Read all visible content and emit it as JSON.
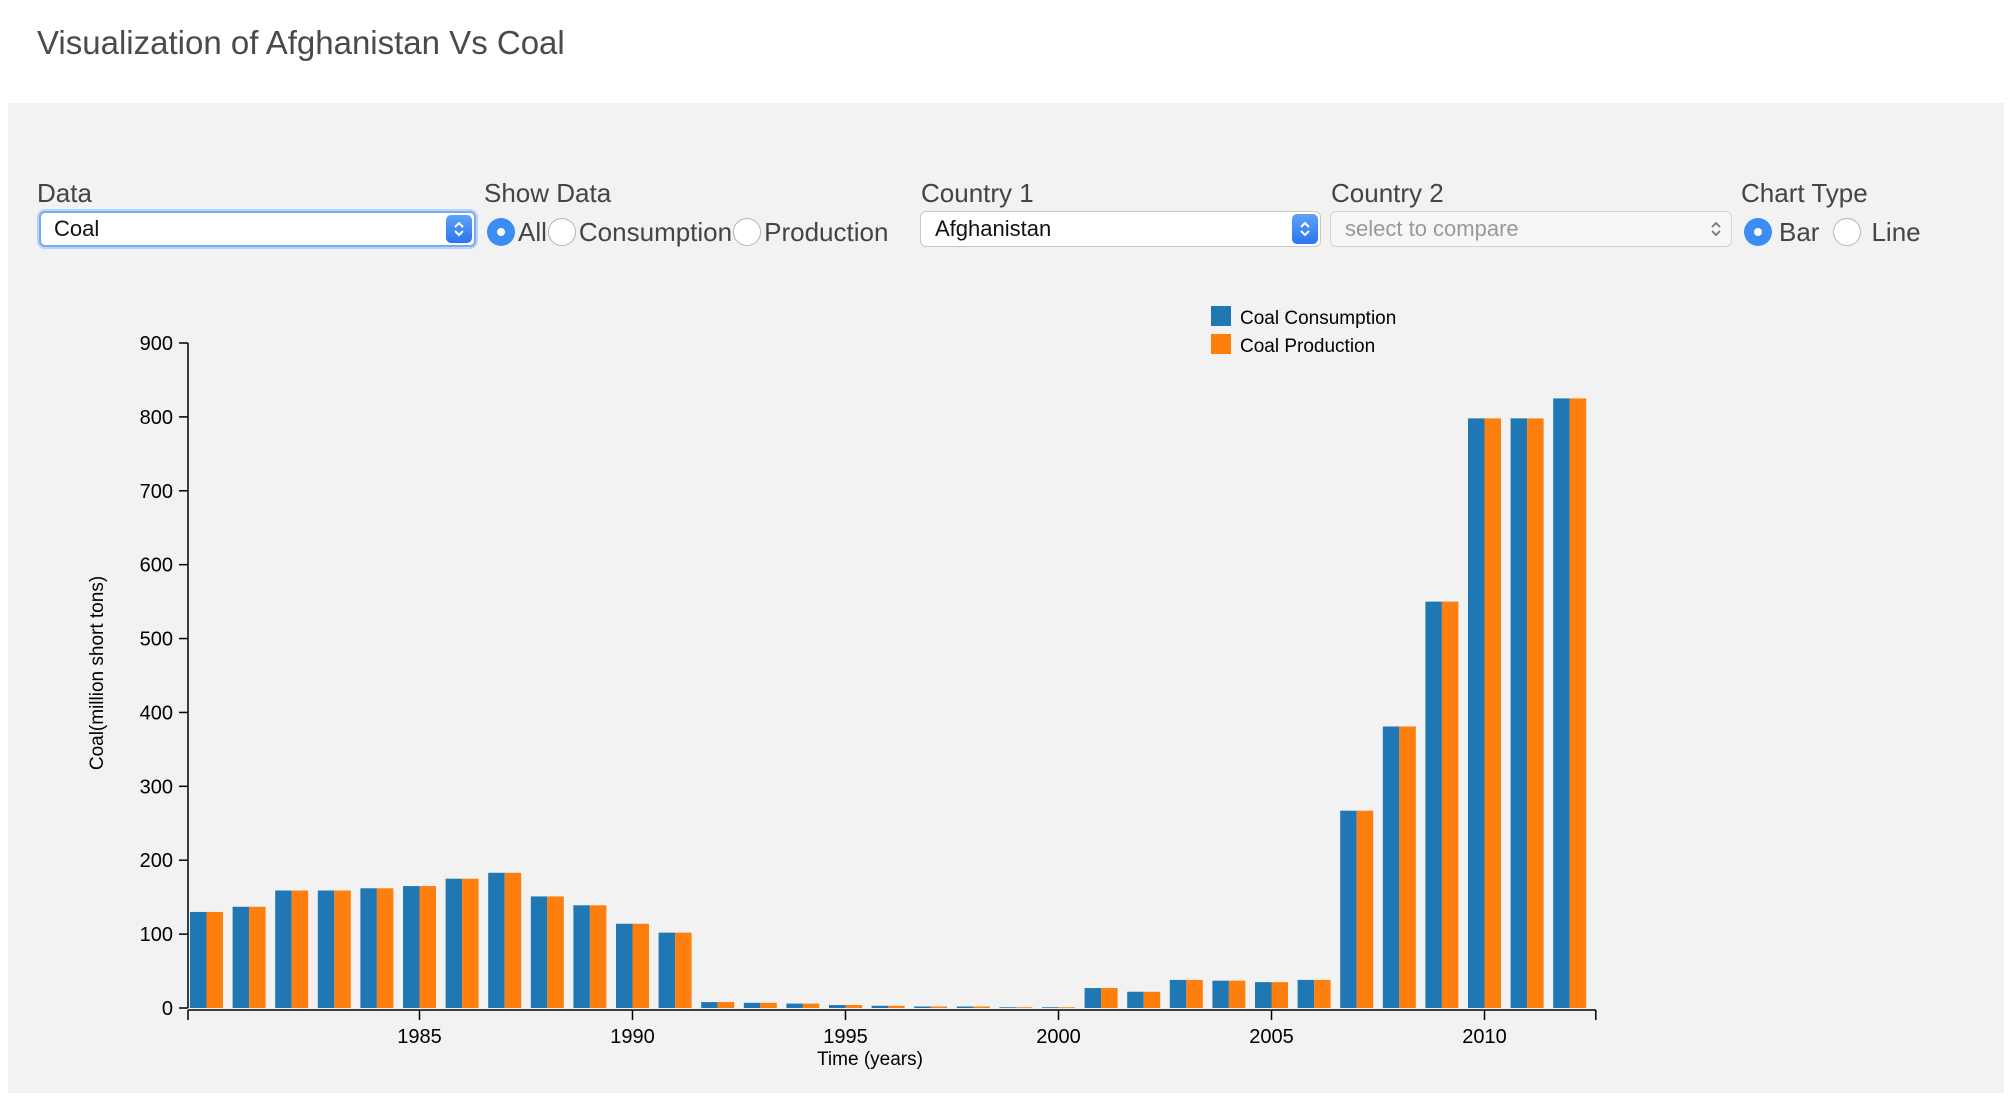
{
  "page": {
    "title": "Visualization of Afghanistan Vs Coal"
  },
  "controls": {
    "data": {
      "label": "Data",
      "value": "Coal"
    },
    "show_data": {
      "label": "Show Data",
      "options": [
        {
          "label": "All",
          "checked": true
        },
        {
          "label": "Consumption",
          "checked": false
        },
        {
          "label": "Production",
          "checked": false
        }
      ]
    },
    "country1": {
      "label": "Country 1",
      "value": "Afghanistan"
    },
    "country2": {
      "label": "Country 2",
      "placeholder": "select to compare"
    },
    "chart_type": {
      "label": "Chart Type",
      "options": [
        {
          "label": "Bar",
          "checked": true
        },
        {
          "label": "Line",
          "checked": false
        }
      ]
    }
  },
  "colors": {
    "consumption": "#1f77b4",
    "production": "#ff7f0e"
  },
  "chart_data": {
    "type": "bar",
    "xlabel": "Time (years)",
    "ylabel": "Coal(million short tons)",
    "ylim": [
      0,
      900
    ],
    "yticks": [
      0,
      100,
      200,
      300,
      400,
      500,
      600,
      700,
      800,
      900
    ],
    "xticks": [
      1985,
      1990,
      1995,
      2000,
      2005,
      2010
    ],
    "legend_position": "top",
    "categories": [
      1980,
      1981,
      1982,
      1983,
      1984,
      1985,
      1986,
      1987,
      1988,
      1989,
      1990,
      1991,
      1992,
      1993,
      1994,
      1995,
      1996,
      1997,
      1998,
      1999,
      2000,
      2001,
      2002,
      2003,
      2004,
      2005,
      2006,
      2007,
      2008,
      2009,
      2010,
      2011,
      2012
    ],
    "series": [
      {
        "name": "Coal Consumption",
        "values": [
          130,
          137,
          159,
          159,
          162,
          165,
          175,
          183,
          151,
          139,
          114,
          102,
          8,
          7,
          6,
          4,
          3,
          2,
          2,
          1,
          1,
          27,
          22,
          38,
          37,
          35,
          38,
          267,
          381,
          550,
          798,
          798,
          825
        ]
      },
      {
        "name": "Coal Production",
        "values": [
          130,
          137,
          159,
          159,
          162,
          165,
          175,
          183,
          151,
          139,
          114,
          102,
          8,
          7,
          6,
          4,
          3,
          2,
          2,
          1,
          1,
          27,
          22,
          38,
          37,
          35,
          38,
          267,
          381,
          550,
          798,
          798,
          825
        ]
      }
    ]
  }
}
